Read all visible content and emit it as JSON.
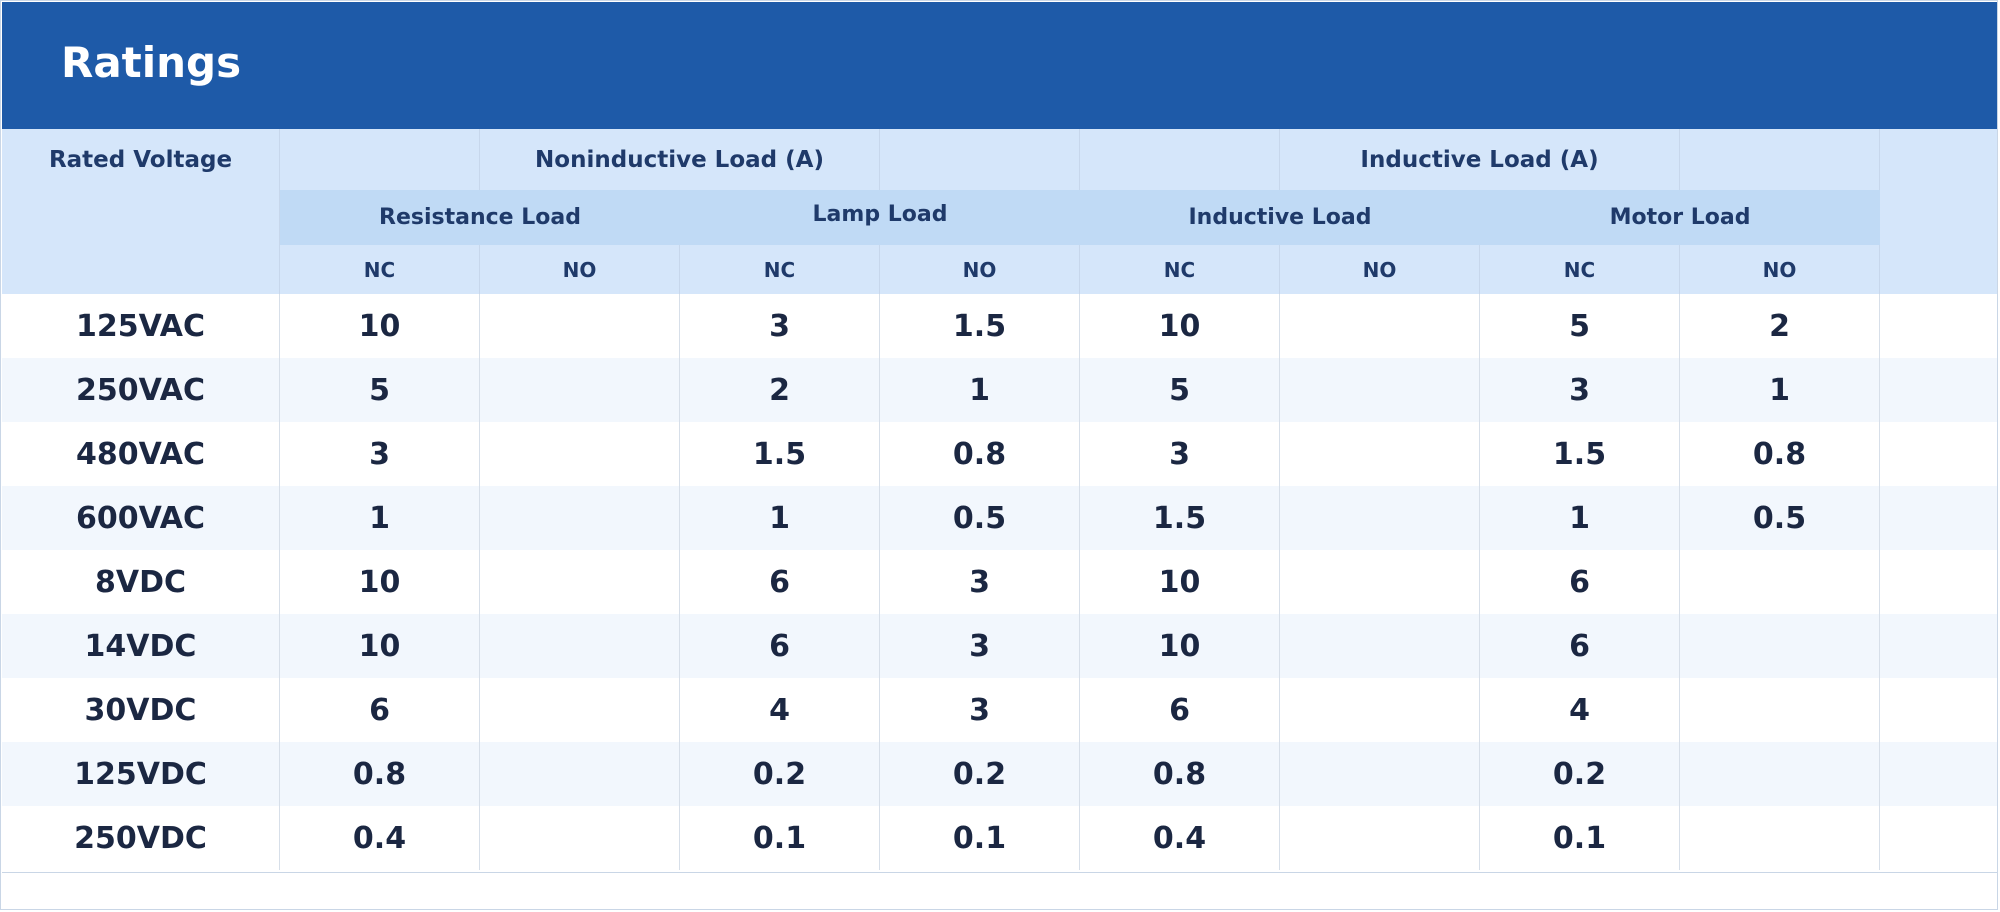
{
  "title": "Ratings",
  "headers": {
    "rated_voltage": "Rated Voltage",
    "group_noninductive": "Noninductive Load (A)",
    "group_inductive": "Inductive Load (A)",
    "sub_resistance": "Resistance Load",
    "sub_lamp": "Lamp Load",
    "sub_inductive": "Inductive Load",
    "sub_motor": "Motor Load",
    "contacts": [
      "NC",
      "NO",
      "NC",
      "NO",
      "NC",
      "NO",
      "NC",
      "NO"
    ]
  },
  "rows": [
    {
      "voltage": "125VAC",
      "values": [
        "10",
        "",
        "3",
        "1.5",
        "10",
        "",
        "5",
        "2"
      ]
    },
    {
      "voltage": "250VAC",
      "values": [
        "5",
        "",
        "2",
        "1",
        "5",
        "",
        "3",
        "1"
      ]
    },
    {
      "voltage": "480VAC",
      "values": [
        "3",
        "",
        "1.5",
        "0.8",
        "3",
        "",
        "1.5",
        "0.8"
      ]
    },
    {
      "voltage": "600VAC",
      "values": [
        "1",
        "",
        "1",
        "0.5",
        "1.5",
        "",
        "1",
        "0.5"
      ]
    },
    {
      "voltage": "8VDC",
      "values": [
        "10",
        "",
        "6",
        "3",
        "10",
        "",
        "6",
        ""
      ]
    },
    {
      "voltage": "14VDC",
      "values": [
        "10",
        "",
        "6",
        "3",
        "10",
        "",
        "6",
        ""
      ]
    },
    {
      "voltage": "30VDC",
      "values": [
        "6",
        "",
        "4",
        "3",
        "6",
        "",
        "4",
        ""
      ]
    },
    {
      "voltage": "125VDC",
      "values": [
        "0.8",
        "",
        "0.2",
        "0.2",
        "0.8",
        "",
        "0.2",
        ""
      ]
    },
    {
      "voltage": "250VDC",
      "values": [
        "0.4",
        "",
        "0.1",
        "0.1",
        "0.4",
        "",
        "0.1",
        ""
      ]
    }
  ]
}
